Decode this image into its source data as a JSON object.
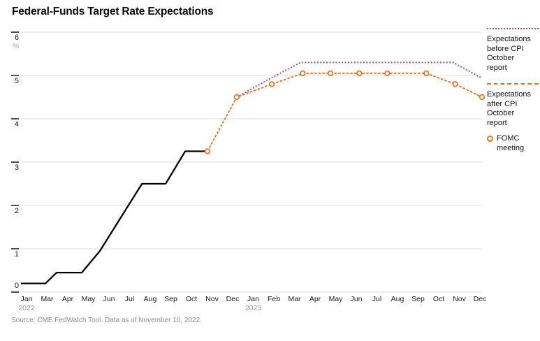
{
  "title": "Federal-Funds Target Rate Expectations",
  "source_note": "Source: CME FedWatch Tool. Data as of November 10, 2022.",
  "legend": {
    "before": {
      "l1": "Expectations",
      "l2": "before CPI",
      "l3": "October",
      "l4": "report"
    },
    "after": {
      "l1": "Expectations",
      "l2": "after CPI",
      "l3": "October",
      "l4": "report"
    },
    "fomc": {
      "l1": "FOMC",
      "l2": "meeting"
    }
  },
  "chart_data": {
    "type": "line",
    "title": "Federal-Funds Target Rate Expectations",
    "y_axis": {
      "unit": "%",
      "min": 0,
      "max": 6,
      "ticks": [
        6,
        5,
        4,
        3,
        2,
        1,
        0
      ],
      "grid": true
    },
    "x_axis": {
      "x_encoding": "slot index of visible tick labels; 0 = Jan 2022 tick, 22 = Dec 2023 tick (Feb 2022 label not shown)",
      "labels": [
        {
          "m": "Jan",
          "year": "2022"
        },
        {
          "m": "Mar"
        },
        {
          "m": "Apr"
        },
        {
          "m": "May"
        },
        {
          "m": "Jun"
        },
        {
          "m": "Jul"
        },
        {
          "m": "Aug"
        },
        {
          "m": "Sep"
        },
        {
          "m": "Oct"
        },
        {
          "m": "Nov"
        },
        {
          "m": "Dec"
        },
        {
          "m": "Jan",
          "year": "2023"
        },
        {
          "m": "Feb"
        },
        {
          "m": "Mar"
        },
        {
          "m": "Apr"
        },
        {
          "m": "May"
        },
        {
          "m": "Jun"
        },
        {
          "m": "Jul"
        },
        {
          "m": "Aug"
        },
        {
          "m": "Sep"
        },
        {
          "m": "Oct"
        },
        {
          "m": "Nov"
        },
        {
          "m": "Dec"
        }
      ]
    },
    "legend_position": "right",
    "marker_legend": "FOMC meeting",
    "series": [
      {
        "id": "historical-rate",
        "legend_label": null,
        "style": "solid",
        "color": "#000000",
        "points": [
          [
            -0.27,
            0.2
          ],
          [
            0.92,
            0.2
          ],
          [
            1.46,
            0.45
          ],
          [
            2.68,
            0.45
          ],
          [
            3.56,
            0.95
          ],
          [
            5.6,
            2.5
          ],
          [
            6.75,
            2.5
          ],
          [
            7.7,
            3.25
          ],
          [
            8.78,
            3.25
          ]
        ]
      },
      {
        "id": "expectations-before-cpi",
        "legend_label": "Expectations before CPI October report",
        "style": "dotted",
        "color": "#9e4b9c",
        "points": [
          [
            10.2,
            4.5
          ],
          [
            11.9,
            4.95
          ],
          [
            13.3,
            5.3
          ],
          [
            20.7,
            5.3
          ],
          [
            22.05,
            4.95
          ]
        ]
      },
      {
        "id": "expectations-after-cpi",
        "legend_label": "Expectations after CPI October report",
        "style": "dashed",
        "color": "#ee7523",
        "markers": true,
        "marker_meaning": "FOMC meeting",
        "points": [
          [
            8.78,
            3.25
          ],
          [
            10.2,
            4.5
          ],
          [
            11.9,
            4.8
          ],
          [
            13.4,
            5.05
          ],
          [
            14.75,
            5.05
          ],
          [
            16.15,
            5.05
          ],
          [
            17.5,
            5.05
          ],
          [
            19.4,
            5.05
          ],
          [
            20.8,
            4.8
          ],
          [
            22.1,
            4.5
          ]
        ]
      }
    ],
    "colors": {
      "gridline": "#dcdcdc",
      "axis_tick": "#222222",
      "year_label": "#9b9b9b"
    }
  }
}
